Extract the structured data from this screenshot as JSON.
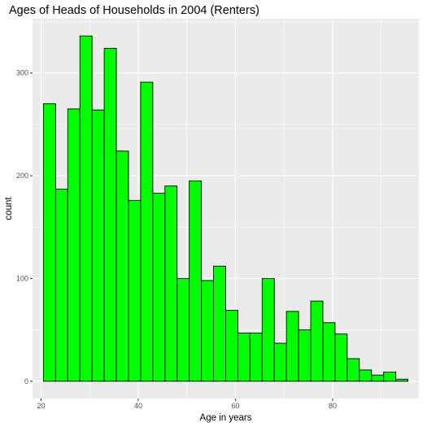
{
  "chart_data": {
    "type": "bar",
    "title": "Ages of Heads of Households in 2004 (Renters)",
    "xlabel": "Age in years",
    "ylabel": "count",
    "bin_width": 2.5,
    "bins": [
      {
        "start": 20.5,
        "end": 23.0,
        "count": 270
      },
      {
        "start": 23.0,
        "end": 25.5,
        "count": 187
      },
      {
        "start": 25.5,
        "end": 28.0,
        "count": 265
      },
      {
        "start": 28.0,
        "end": 30.5,
        "count": 336
      },
      {
        "start": 30.5,
        "end": 33.0,
        "count": 264
      },
      {
        "start": 33.0,
        "end": 35.5,
        "count": 324
      },
      {
        "start": 35.5,
        "end": 38.0,
        "count": 224
      },
      {
        "start": 38.0,
        "end": 40.5,
        "count": 176
      },
      {
        "start": 40.5,
        "end": 43.0,
        "count": 291
      },
      {
        "start": 43.0,
        "end": 45.5,
        "count": 183
      },
      {
        "start": 45.5,
        "end": 48.0,
        "count": 190
      },
      {
        "start": 48.0,
        "end": 50.5,
        "count": 100
      },
      {
        "start": 50.5,
        "end": 53.0,
        "count": 195
      },
      {
        "start": 53.0,
        "end": 55.5,
        "count": 98
      },
      {
        "start": 55.5,
        "end": 58.0,
        "count": 112
      },
      {
        "start": 58.0,
        "end": 60.5,
        "count": 69
      },
      {
        "start": 60.5,
        "end": 63.0,
        "count": 47
      },
      {
        "start": 63.0,
        "end": 65.5,
        "count": 47
      },
      {
        "start": 65.5,
        "end": 68.0,
        "count": 100
      },
      {
        "start": 68.0,
        "end": 70.5,
        "count": 37
      },
      {
        "start": 70.5,
        "end": 73.0,
        "count": 68
      },
      {
        "start": 73.0,
        "end": 75.5,
        "count": 50
      },
      {
        "start": 75.5,
        "end": 78.0,
        "count": 78
      },
      {
        "start": 78.0,
        "end": 80.5,
        "count": 57
      },
      {
        "start": 80.5,
        "end": 83.0,
        "count": 46
      },
      {
        "start": 83.0,
        "end": 85.5,
        "count": 22
      },
      {
        "start": 85.5,
        "end": 88.0,
        "count": 11
      },
      {
        "start": 88.0,
        "end": 90.5,
        "count": 6
      },
      {
        "start": 90.5,
        "end": 93.0,
        "count": 9
      },
      {
        "start": 93.0,
        "end": 95.5,
        "count": 2
      }
    ],
    "x_ticks": [
      20,
      40,
      60,
      80
    ],
    "y_ticks": [
      0,
      100,
      200,
      300
    ],
    "xlim": [
      18.25,
      97.75
    ],
    "ylim": [
      -16.8,
      352.8
    ],
    "grid": true,
    "bar_fill": "#00ff00",
    "bar_stroke": "#000000",
    "panel_background": "#ebebeb",
    "gridline_color": "#ffffff"
  }
}
